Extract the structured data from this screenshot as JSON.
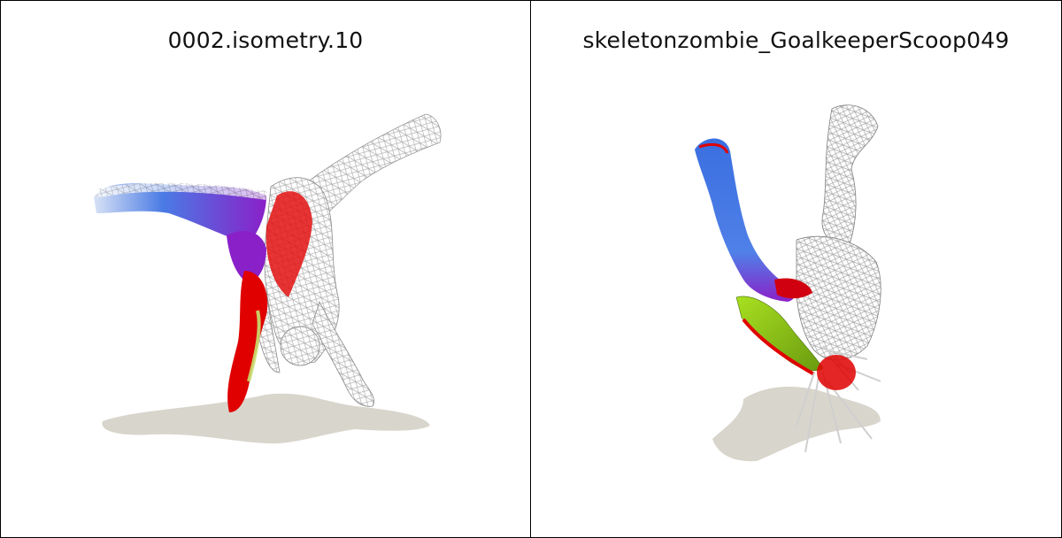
{
  "panels": [
    {
      "title": "0002.isometry.10"
    },
    {
      "title": "skeletonzombie_GoalkeeperScoop049"
    }
  ],
  "colors": {
    "background": "#ffffff",
    "border": "#000000",
    "shadow": "#d8d5cc",
    "wire": "#b8b8b8",
    "red": "#e00000",
    "blue": "#3a6fe0",
    "purple": "#8a20c8",
    "green": "#8fd020"
  }
}
